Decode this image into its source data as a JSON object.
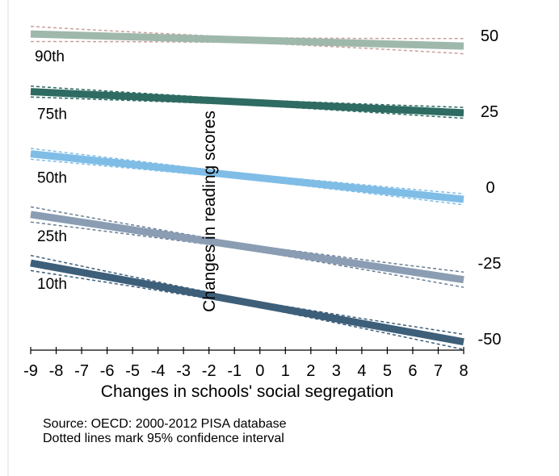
{
  "chart_data": {
    "type": "line",
    "xlabel": "Changes in schools' social segregation",
    "ylabel": "Changes in reading scores",
    "xlim": [
      -9,
      8
    ],
    "ylim": [
      -50,
      50
    ],
    "x_ticks": [
      -9,
      -8,
      -7,
      -6,
      -5,
      -4,
      -3,
      -2,
      -1,
      0,
      1,
      2,
      3,
      4,
      5,
      6,
      7,
      8
    ],
    "y_ticks": [
      50,
      25,
      0,
      -25,
      -50
    ],
    "y_axis_position": "right",
    "grid": false,
    "series": [
      {
        "name": "90th",
        "color": "#9fb8ac",
        "ci_color": "#c9a09a",
        "y_start": 50.5,
        "y_end": 46.5,
        "ci_halfwidth_start": 1.5,
        "ci_halfwidth_end": 2.5
      },
      {
        "name": "75th",
        "color": "#2e6b62",
        "ci_color": "#2e6b62",
        "y_start": 31.5,
        "y_end": 24.5,
        "ci_halfwidth_start": 1.5,
        "ci_halfwidth_end": 1.8
      },
      {
        "name": "50th",
        "color": "#7fbde6",
        "ci_color": "#7fbde6",
        "y_start": 11.0,
        "y_end": -4.0,
        "ci_halfwidth_start": 1.5,
        "ci_halfwidth_end": 1.8
      },
      {
        "name": "25th",
        "color": "#8a9db3",
        "ci_color": "#6a7f95",
        "y_start": -9.0,
        "y_end": -30.5,
        "ci_halfwidth_start": 1.5,
        "ci_halfwidth_end": 2.5
      },
      {
        "name": "10th",
        "color": "#3d5f7a",
        "ci_color": "#3d5f7a",
        "y_start": -25.0,
        "y_end": -51.0,
        "ci_halfwidth_start": 1.5,
        "ci_halfwidth_end": 2.5
      }
    ]
  },
  "notes": {
    "source": "Source: OECD: 2000-2012 PISA database",
    "ci": "Dotted lines mark 95% confidence interval"
  }
}
